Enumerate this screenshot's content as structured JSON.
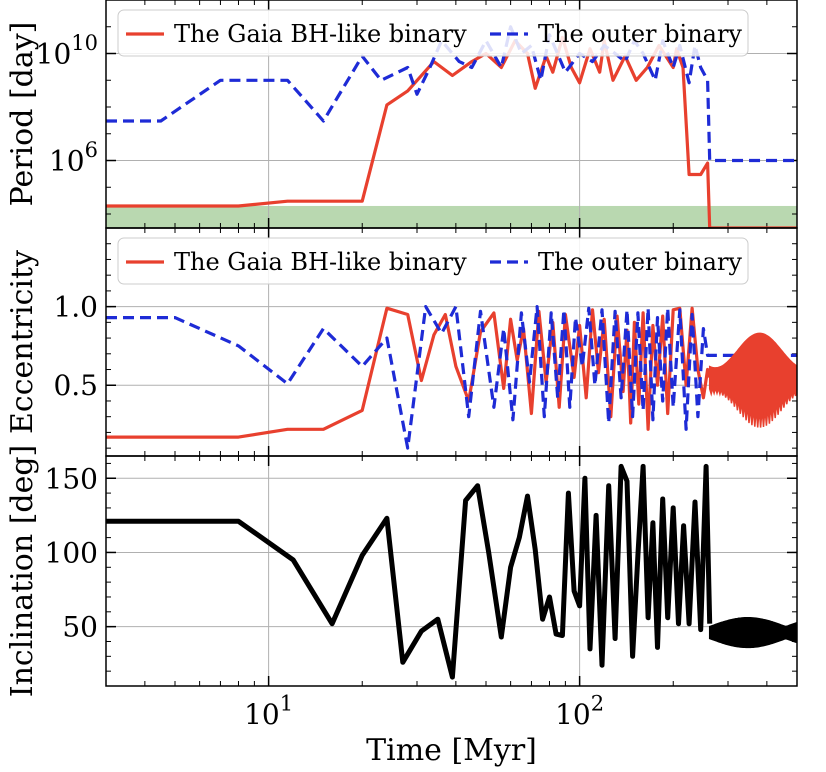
{
  "chart_data": [
    {
      "type": "line",
      "panel": "period",
      "ylabel": "Period [day]",
      "yscale": "log",
      "xscale": "log",
      "xlim": [
        3,
        500
      ],
      "ylim": [
        3000,
        1000000000000.0
      ],
      "yticks": [
        {
          "value": 1000000,
          "base": "10",
          "exp": "6"
        },
        {
          "value": 10000000000,
          "base": "10",
          "exp": "10"
        }
      ],
      "shaded_band": {
        "color": "#b9d8b0",
        "y0": 3000,
        "y1": 20000
      },
      "legend": {
        "position": "top",
        "entries": [
          "The Gaia BH-like binary",
          "The outer binary"
        ]
      },
      "series": [
        {
          "name": "The Gaia BH-like binary",
          "color": "#e8402e",
          "style": "solid",
          "x": [
            3,
            5,
            8,
            11.5,
            15,
            20,
            24,
            28,
            34,
            39,
            45,
            50,
            56,
            62,
            68,
            72,
            78,
            82,
            88,
            94,
            100,
            108,
            116,
            120,
            128,
            140,
            152,
            165,
            180,
            200,
            205,
            215,
            225,
            245,
            258,
            262,
            300,
            400,
            500
          ],
          "y": [
            20000,
            20000,
            20000,
            30000,
            30000,
            30000,
            120000000.0,
            400000000.0,
            5000000000.0,
            1500000000.0,
            5000000000.0,
            10000000000.0,
            3000000000.0,
            30000000000.0,
            10000000000.0,
            500000000.0,
            8000000000.0,
            2000000000.0,
            40000000000.0,
            3000000000.0,
            800000000.0,
            15000000000.0,
            2000000000.0,
            30000000000.0,
            1000000000.0,
            8000000000.0,
            1000000000.0,
            3000000000.0,
            20000000000.0,
            3000000000.0,
            15000000000.0,
            3000000000.0,
            300000.0,
            300000.0,
            800000.0,
            3000,
            3000,
            3000,
            3000
          ]
        },
        {
          "name": "The outer binary",
          "color": "#1e2bd6",
          "style": "dashed",
          "x": [
            3,
            4.5,
            7,
            11.5,
            15,
            20,
            23,
            28,
            30,
            33,
            36,
            41,
            45,
            50,
            56,
            60,
            65,
            70,
            75,
            80,
            90,
            100,
            110,
            120,
            130,
            140,
            150,
            160,
            175,
            185,
            200,
            210,
            225,
            235,
            245,
            258,
            262,
            300,
            400,
            500
          ],
          "y": [
            30000000.0,
            30000000.0,
            1000000000.0,
            1000000000.0,
            30000000.0,
            8000000000.0,
            1000000000.0,
            3000000000.0,
            300000000.0,
            3000000000.0,
            30000000000.0,
            5000000000.0,
            3000000000.0,
            30000000000.0,
            3000000000.0,
            100000000000.0,
            10000000000.0,
            20000000000.0,
            1000000000.0,
            50000000000.0,
            2000000000.0,
            10000000000.0,
            5000000000.0,
            20000000000.0,
            10000000000.0,
            5000000000.0,
            30000000000.0,
            10000000000.0,
            1000000000.0,
            30000000000.0,
            3000000000.0,
            20000000000.0,
            800000000.0,
            20000000000.0,
            3000000000.0,
            1000000000.0,
            1000000.0,
            1000000.0,
            1000000.0,
            1000000.0
          ]
        }
      ]
    },
    {
      "type": "line",
      "panel": "eccentricity",
      "ylabel": "Eccentricity",
      "xscale": "log",
      "xlim": [
        3,
        500
      ],
      "ylim": [
        0.05,
        1.5
      ],
      "yticks": [
        "0.5",
        "1.0"
      ],
      "legend": {
        "position": "top",
        "entries": [
          "The Gaia BH-like binary",
          "The outer binary"
        ]
      },
      "series": [
        {
          "name": "The Gaia BH-like binary",
          "color": "#e8402e",
          "style": "solid",
          "x": [
            3,
            5,
            8,
            11.5,
            15,
            20,
            24,
            28,
            31,
            34,
            37,
            40,
            44,
            48,
            53,
            57,
            60,
            63,
            66,
            70,
            74,
            78,
            82,
            86,
            90,
            96,
            100,
            105,
            110,
            115,
            120,
            126,
            132,
            138,
            142,
            146,
            150,
            155,
            160,
            166,
            172,
            178,
            185,
            192,
            200,
            210,
            220,
            230,
            240,
            250,
            258,
            262
          ],
          "y": [
            0.17,
            0.17,
            0.17,
            0.22,
            0.22,
            0.34,
            0.99,
            0.95,
            0.53,
            0.82,
            0.95,
            0.62,
            0.4,
            0.84,
            0.96,
            0.48,
            0.92,
            0.66,
            0.86,
            0.32,
            0.97,
            0.52,
            0.9,
            0.36,
            0.95,
            0.55,
            0.88,
            0.42,
            0.98,
            0.58,
            0.92,
            0.3,
            0.94,
            0.46,
            0.85,
            0.26,
            0.9,
            0.38,
            0.96,
            0.22,
            0.88,
            0.5,
            0.94,
            0.32,
            0.98,
            0.99,
            0.5,
            0.99,
            0.6,
            0.42,
            0.6,
            0.55
          ]
        },
        {
          "name": "The outer binary",
          "color": "#1e2bd6",
          "style": "dashed",
          "x": [
            3,
            5,
            8,
            11.5,
            15,
            20,
            24,
            28,
            32,
            36,
            40,
            44,
            48,
            53,
            57,
            61,
            65,
            69,
            73,
            77,
            81,
            85,
            89,
            93,
            97,
            102,
            107,
            112,
            118,
            124,
            130,
            136,
            142,
            148,
            154,
            160,
            166,
            172,
            178,
            185,
            192,
            200,
            210,
            220,
            230,
            240,
            250,
            258,
            262,
            300,
            400,
            500
          ],
          "y": [
            0.93,
            0.93,
            0.75,
            0.51,
            0.86,
            0.62,
            0.8,
            0.1,
            1.0,
            0.83,
            1.0,
            0.3,
            0.97,
            0.36,
            0.86,
            0.28,
            0.96,
            0.52,
            1.0,
            0.3,
            0.96,
            0.42,
            0.98,
            0.36,
            0.93,
            0.62,
            0.99,
            0.5,
            0.98,
            0.26,
            0.97,
            0.42,
            0.98,
            0.3,
            0.96,
            0.34,
            0.99,
            0.28,
            0.93,
            0.4,
            0.99,
            0.36,
            0.98,
            0.22,
            0.95,
            0.3,
            0.86,
            0.69,
            0.69,
            0.69,
            0.69,
            0.69
          ]
        }
      ]
    },
    {
      "type": "line",
      "panel": "inclination",
      "ylabel": "Inclination [deg]",
      "xlabel": "Time [Myr]",
      "xscale": "log",
      "xlim": [
        3,
        500
      ],
      "ylim": [
        10,
        165
      ],
      "yticks": [
        "50",
        "100",
        "150"
      ],
      "xticks": [
        {
          "value": 10,
          "base": "10",
          "exp": "1"
        },
        {
          "value": 100,
          "base": "10",
          "exp": "2"
        }
      ],
      "series": [
        {
          "name": "",
          "color": "#000000",
          "style": "solid",
          "x": [
            3,
            5,
            8,
            12,
            16,
            20,
            24,
            27,
            31,
            35,
            39,
            43,
            47,
            51,
            56,
            60,
            64,
            68,
            72,
            76,
            80,
            84,
            88,
            92,
            96,
            100,
            104,
            108,
            113,
            118,
            124,
            130,
            136,
            142,
            148,
            154,
            160,
            166,
            172,
            178,
            185,
            192,
            200,
            208,
            216,
            225,
            235,
            245,
            255,
            262
          ],
          "y": [
            121,
            121,
            121,
            95,
            52,
            98,
            123,
            26,
            47,
            55,
            16,
            135,
            145,
            100,
            43,
            90,
            110,
            138,
            102,
            55,
            70,
            45,
            44,
            140,
            74,
            64,
            150,
            35,
            125,
            24,
            145,
            42,
            158,
            148,
            30,
            98,
            158,
            56,
            120,
            36,
            136,
            56,
            130,
            52,
            118,
            52,
            134,
            48,
            158,
            52
          ]
        }
      ]
    }
  ]
}
